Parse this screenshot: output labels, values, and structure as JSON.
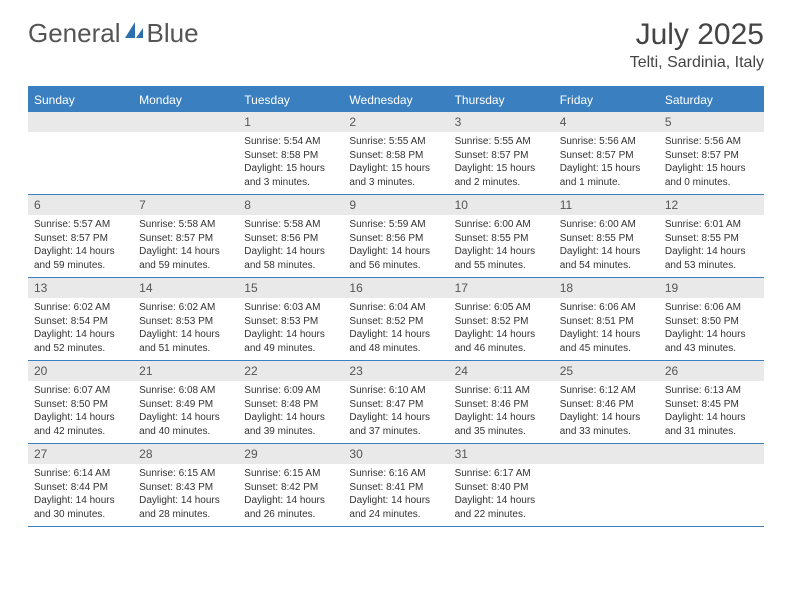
{
  "brand": {
    "part1": "General",
    "part2": "Blue"
  },
  "title": {
    "month": "July 2025",
    "location": "Telti, Sardinia, Italy"
  },
  "colors": {
    "accent": "#3a7fbf",
    "header_text": "#ffffff",
    "daynum_bg": "#e9e9e9",
    "text": "#333333",
    "title_text": "#444444",
    "logo_text": "#555555",
    "background": "#ffffff"
  },
  "daysOfWeek": [
    "Sunday",
    "Monday",
    "Tuesday",
    "Wednesday",
    "Thursday",
    "Friday",
    "Saturday"
  ],
  "weeks": [
    [
      {
        "n": "",
        "sr": "",
        "ss": "",
        "dl": ""
      },
      {
        "n": "",
        "sr": "",
        "ss": "",
        "dl": ""
      },
      {
        "n": "1",
        "sr": "5:54 AM",
        "ss": "8:58 PM",
        "dl": "15 hours and 3 minutes."
      },
      {
        "n": "2",
        "sr": "5:55 AM",
        "ss": "8:58 PM",
        "dl": "15 hours and 3 minutes."
      },
      {
        "n": "3",
        "sr": "5:55 AM",
        "ss": "8:57 PM",
        "dl": "15 hours and 2 minutes."
      },
      {
        "n": "4",
        "sr": "5:56 AM",
        "ss": "8:57 PM",
        "dl": "15 hours and 1 minute."
      },
      {
        "n": "5",
        "sr": "5:56 AM",
        "ss": "8:57 PM",
        "dl": "15 hours and 0 minutes."
      }
    ],
    [
      {
        "n": "6",
        "sr": "5:57 AM",
        "ss": "8:57 PM",
        "dl": "14 hours and 59 minutes."
      },
      {
        "n": "7",
        "sr": "5:58 AM",
        "ss": "8:57 PM",
        "dl": "14 hours and 59 minutes."
      },
      {
        "n": "8",
        "sr": "5:58 AM",
        "ss": "8:56 PM",
        "dl": "14 hours and 58 minutes."
      },
      {
        "n": "9",
        "sr": "5:59 AM",
        "ss": "8:56 PM",
        "dl": "14 hours and 56 minutes."
      },
      {
        "n": "10",
        "sr": "6:00 AM",
        "ss": "8:55 PM",
        "dl": "14 hours and 55 minutes."
      },
      {
        "n": "11",
        "sr": "6:00 AM",
        "ss": "8:55 PM",
        "dl": "14 hours and 54 minutes."
      },
      {
        "n": "12",
        "sr": "6:01 AM",
        "ss": "8:55 PM",
        "dl": "14 hours and 53 minutes."
      }
    ],
    [
      {
        "n": "13",
        "sr": "6:02 AM",
        "ss": "8:54 PM",
        "dl": "14 hours and 52 minutes."
      },
      {
        "n": "14",
        "sr": "6:02 AM",
        "ss": "8:53 PM",
        "dl": "14 hours and 51 minutes."
      },
      {
        "n": "15",
        "sr": "6:03 AM",
        "ss": "8:53 PM",
        "dl": "14 hours and 49 minutes."
      },
      {
        "n": "16",
        "sr": "6:04 AM",
        "ss": "8:52 PM",
        "dl": "14 hours and 48 minutes."
      },
      {
        "n": "17",
        "sr": "6:05 AM",
        "ss": "8:52 PM",
        "dl": "14 hours and 46 minutes."
      },
      {
        "n": "18",
        "sr": "6:06 AM",
        "ss": "8:51 PM",
        "dl": "14 hours and 45 minutes."
      },
      {
        "n": "19",
        "sr": "6:06 AM",
        "ss": "8:50 PM",
        "dl": "14 hours and 43 minutes."
      }
    ],
    [
      {
        "n": "20",
        "sr": "6:07 AM",
        "ss": "8:50 PM",
        "dl": "14 hours and 42 minutes."
      },
      {
        "n": "21",
        "sr": "6:08 AM",
        "ss": "8:49 PM",
        "dl": "14 hours and 40 minutes."
      },
      {
        "n": "22",
        "sr": "6:09 AM",
        "ss": "8:48 PM",
        "dl": "14 hours and 39 minutes."
      },
      {
        "n": "23",
        "sr": "6:10 AM",
        "ss": "8:47 PM",
        "dl": "14 hours and 37 minutes."
      },
      {
        "n": "24",
        "sr": "6:11 AM",
        "ss": "8:46 PM",
        "dl": "14 hours and 35 minutes."
      },
      {
        "n": "25",
        "sr": "6:12 AM",
        "ss": "8:46 PM",
        "dl": "14 hours and 33 minutes."
      },
      {
        "n": "26",
        "sr": "6:13 AM",
        "ss": "8:45 PM",
        "dl": "14 hours and 31 minutes."
      }
    ],
    [
      {
        "n": "27",
        "sr": "6:14 AM",
        "ss": "8:44 PM",
        "dl": "14 hours and 30 minutes."
      },
      {
        "n": "28",
        "sr": "6:15 AM",
        "ss": "8:43 PM",
        "dl": "14 hours and 28 minutes."
      },
      {
        "n": "29",
        "sr": "6:15 AM",
        "ss": "8:42 PM",
        "dl": "14 hours and 26 minutes."
      },
      {
        "n": "30",
        "sr": "6:16 AM",
        "ss": "8:41 PM",
        "dl": "14 hours and 24 minutes."
      },
      {
        "n": "31",
        "sr": "6:17 AM",
        "ss": "8:40 PM",
        "dl": "14 hours and 22 minutes."
      },
      {
        "n": "",
        "sr": "",
        "ss": "",
        "dl": ""
      },
      {
        "n": "",
        "sr": "",
        "ss": "",
        "dl": ""
      }
    ]
  ],
  "labels": {
    "sunrise": "Sunrise:",
    "sunset": "Sunset:",
    "daylight": "Daylight:"
  }
}
